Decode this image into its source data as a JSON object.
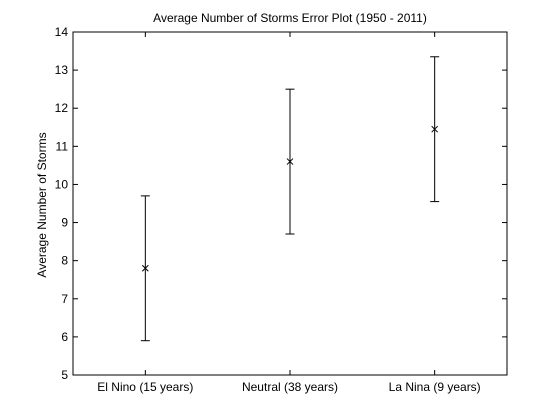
{
  "chart_data": {
    "type": "errorbar",
    "title": "Average Number of Storms Error Plot (1950 - 2011)",
    "xlabel": "",
    "ylabel": "Average Number of Storms",
    "categories": [
      "El Nino (15 years)",
      "Neutral (38 years)",
      "La Nina (9 years)"
    ],
    "series": [
      {
        "mean": [
          7.8,
          10.6,
          11.45
        ],
        "lower": [
          5.9,
          8.7,
          9.55
        ],
        "upper": [
          9.7,
          12.5,
          13.35
        ]
      }
    ],
    "ylim": [
      5,
      14
    ],
    "yticks": [
      5,
      6,
      7,
      8,
      9,
      10,
      11,
      12,
      13,
      14
    ],
    "xlim": [
      0.5,
      3.5
    ],
    "grid": false,
    "legend": "none",
    "marker": "x",
    "colors": {
      "axes": "#000000",
      "series": "#000000",
      "background": "#ffffff"
    }
  }
}
